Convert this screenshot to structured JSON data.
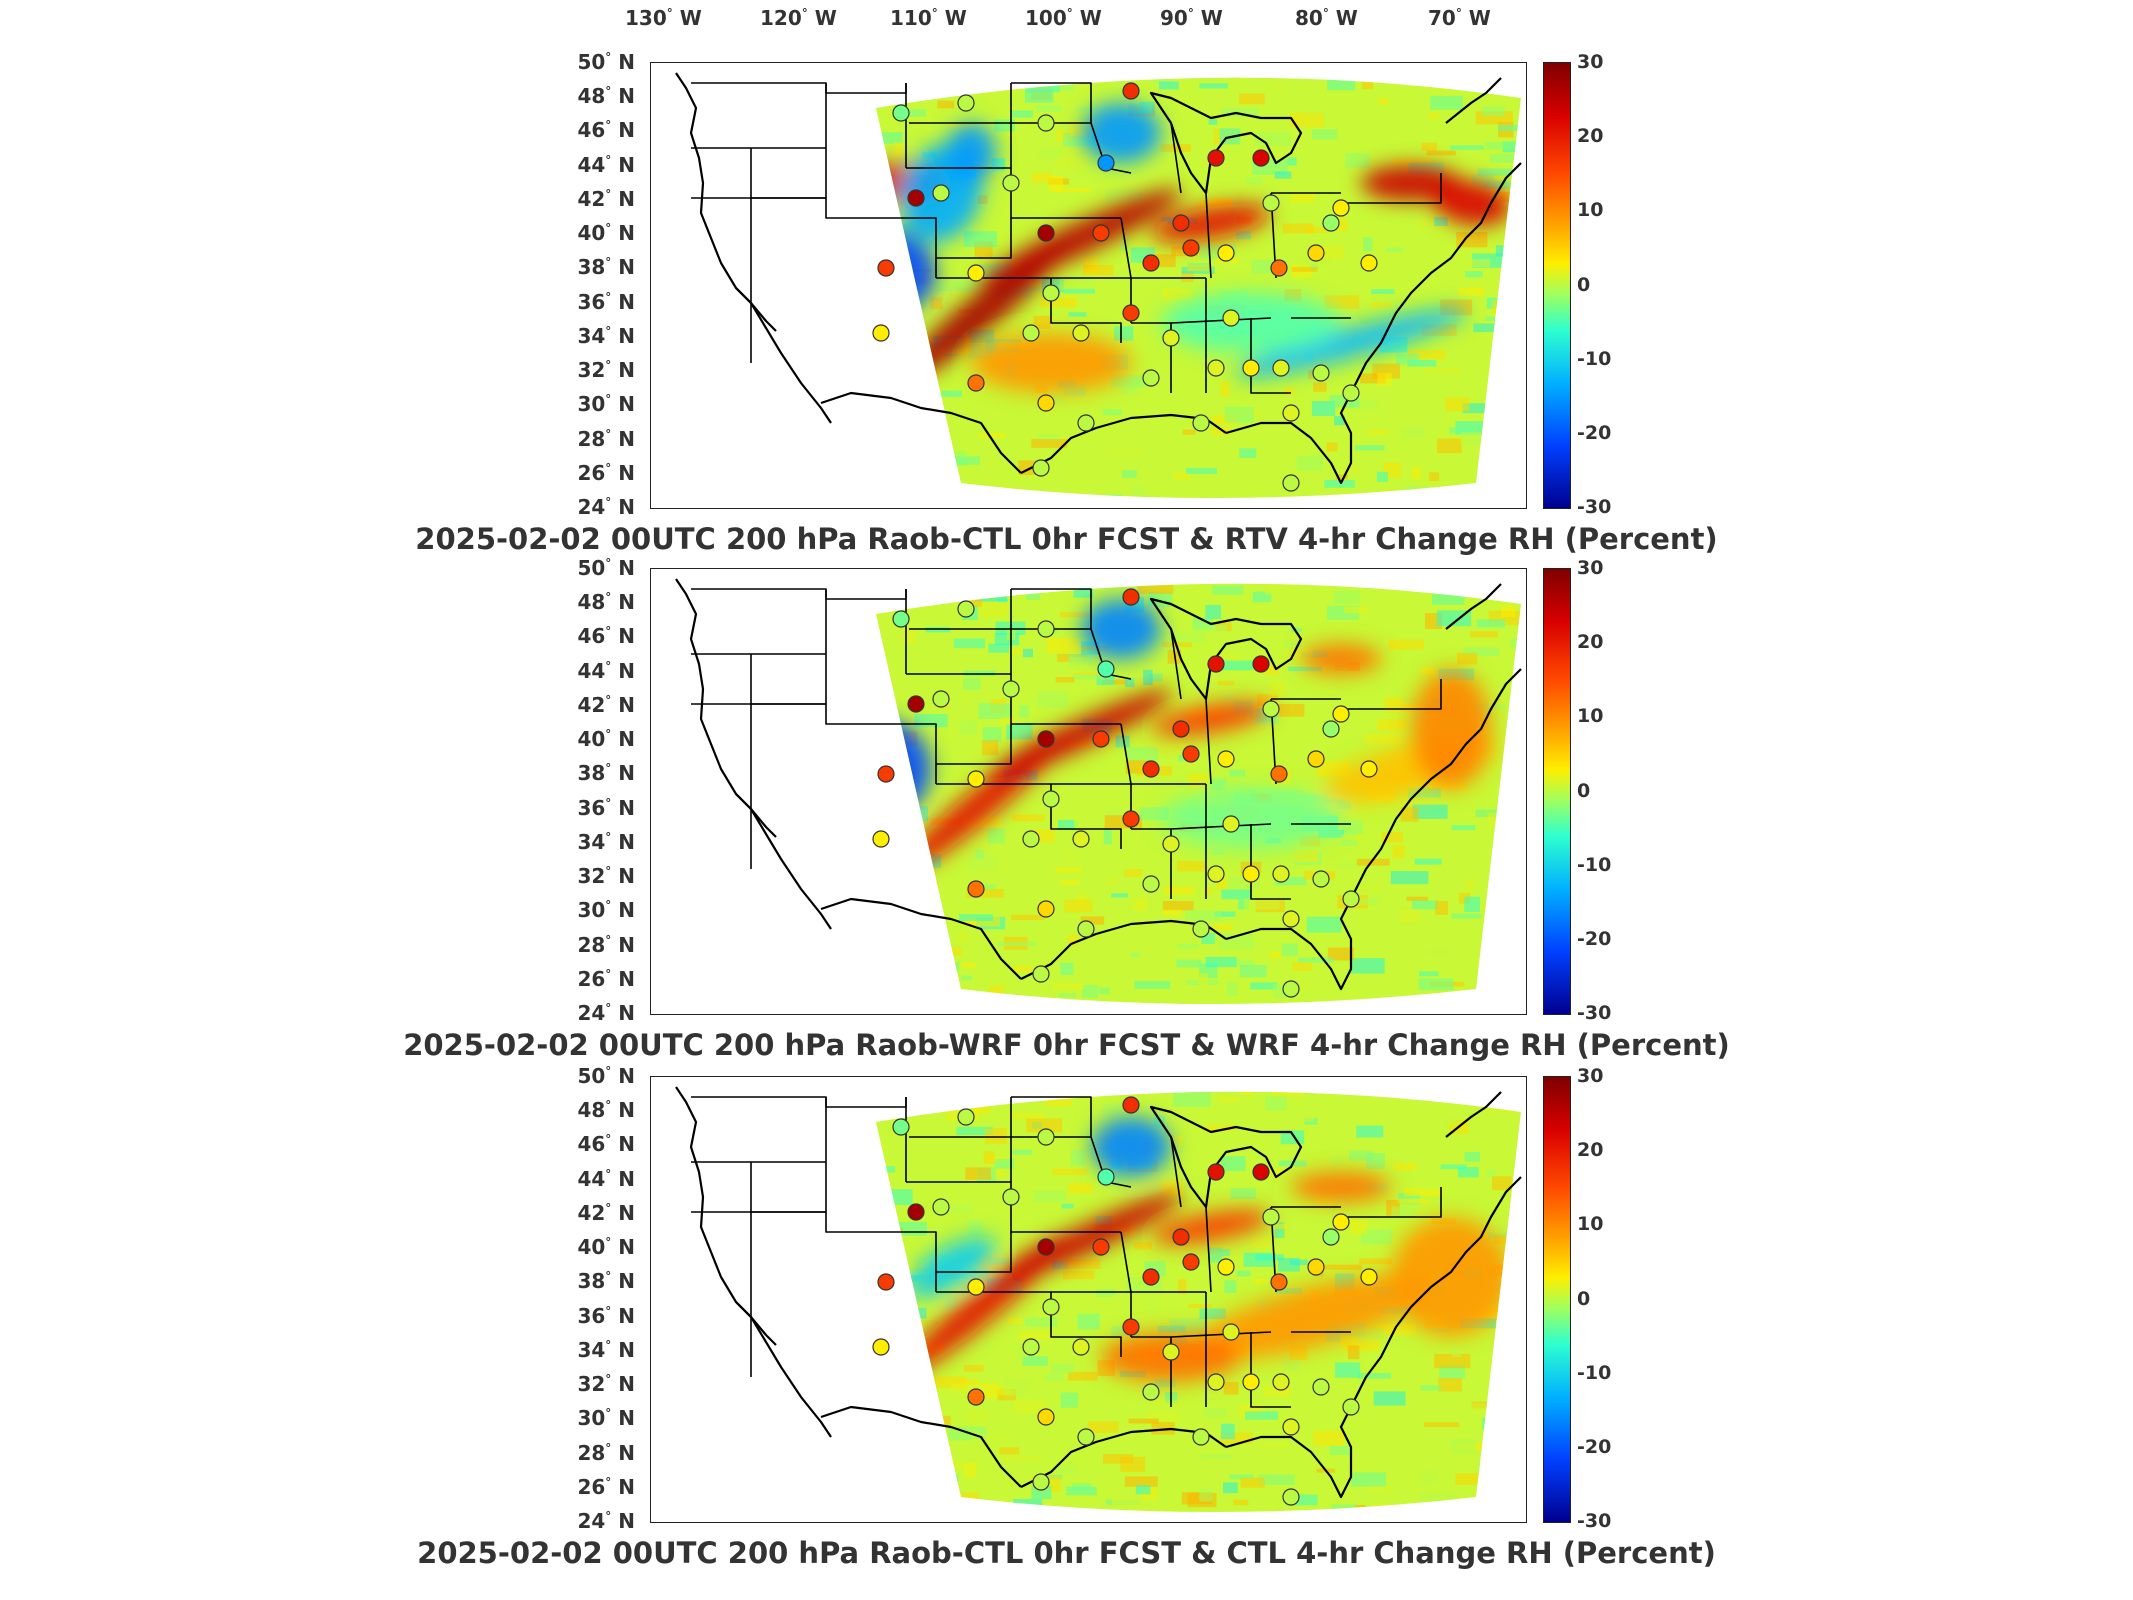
{
  "longitude_labels": [
    "130",
    "120",
    "110",
    "100",
    "90",
    "80",
    "70"
  ],
  "longitude_suffix": "W",
  "latitude_labels": [
    "50",
    "48",
    "46",
    "44",
    "42",
    "40",
    "38",
    "36",
    "34",
    "32",
    "30",
    "28",
    "26",
    "24"
  ],
  "latitude_suffix": "N",
  "colorbar_ticks": [
    "30",
    "20",
    "10",
    "0",
    "-10",
    "-20",
    "-30"
  ],
  "panels": [
    {
      "title": "2025-02-02 00UTC 200 hPa Raob-CTL 0hr FCST & RTV 4-hr Change RH (Percent)",
      "variant": "rtv"
    },
    {
      "title": "2025-02-02 00UTC 200 hPa Raob-WRF 0hr FCST & WRF 4-hr Change RH (Percent)",
      "variant": "wrf"
    },
    {
      "title": "2025-02-02 00UTC 200 hPa Raob-CTL 0hr FCST & CTL 4-hr Change RH (Percent)",
      "variant": "ctl"
    }
  ],
  "colors": {
    "positive_max": "#7f0000",
    "neutral": "#9fff5f",
    "negative_max": "#00008f"
  }
}
